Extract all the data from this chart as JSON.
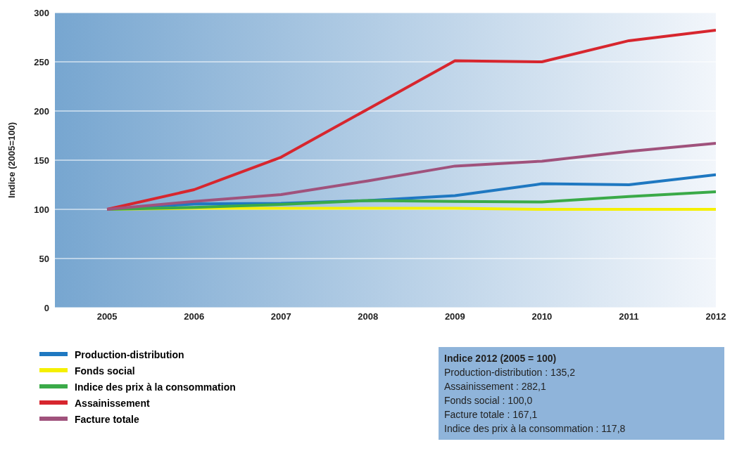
{
  "chart_data": {
    "type": "line",
    "ylabel": "Indice (2005=100)",
    "categories": [
      "2005",
      "2006",
      "2007",
      "2008",
      "2009",
      "2010",
      "2011",
      "2012"
    ],
    "series": [
      {
        "name": "Production-distribution",
        "color": "#1f78c1",
        "values": [
          100,
          105.5,
          106,
          109,
          114,
          126,
          125,
          135.2
        ]
      },
      {
        "name": "Fonds social",
        "color": "#f5f000",
        "values": [
          100,
          101,
          101,
          101,
          101,
          100,
          100,
          100.0
        ]
      },
      {
        "name": "Indice des prix à la consommation",
        "color": "#3aaa48",
        "values": [
          100,
          102,
          105,
          109,
          108,
          107.5,
          113,
          117.8
        ]
      },
      {
        "name": "Assainissement",
        "color": "#d7262e",
        "values": [
          100,
          120,
          153,
          202,
          251,
          250,
          271.5,
          282.1
        ]
      },
      {
        "name": "Facture totale",
        "color": "#a0527c",
        "values": [
          100,
          108,
          115,
          129,
          144,
          149,
          159,
          167.1
        ]
      }
    ],
    "ylim": [
      0,
      300
    ],
    "yticks": [
      0,
      50,
      100,
      150,
      200,
      250,
      300
    ],
    "grid": "y",
    "legend": "bottom left",
    "marker": "none",
    "line_style": "solid",
    "annotations": [
      "Indice 2012 (2005 = 100)",
      "Production-distribution : 135,2",
      "Assainissement : 282,1",
      "Fonds social : 100,0",
      "Facture totale : 167,1",
      "Indice des prix à la consommation : 117,8"
    ]
  }
}
